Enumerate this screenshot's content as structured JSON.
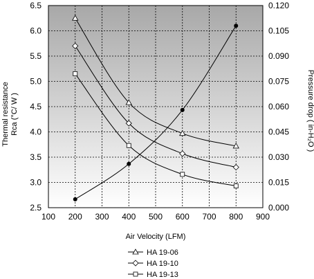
{
  "chart_data": {
    "type": "line",
    "xlabel": "Air Velocity (LFM)",
    "ylabel_left_line1": "Thermal resistance",
    "ylabel_left_line2": "Rca (°C/ W )",
    "ylabel_right": "Pressure drop ( in-H₂O )",
    "xlim": [
      100,
      900
    ],
    "ylim_left": [
      2.5,
      6.5
    ],
    "ylim_right": [
      0.0,
      0.12
    ],
    "x_ticks": [
      "100",
      "200",
      "300",
      "400",
      "500",
      "600",
      "700",
      "800",
      "900"
    ],
    "y_left_ticks": [
      "2.5",
      "3.0",
      "3.5",
      "4.0",
      "4.5",
      "5.0",
      "5.5",
      "6.0",
      "6.5"
    ],
    "y_right_ticks": [
      "0.000",
      "0.015",
      "0.030",
      "0.045",
      "0.060",
      "0.075",
      "0.090",
      "0.105",
      "0.120"
    ],
    "grid": true,
    "legend_position": "below",
    "series": [
      {
        "name": "HA 19-06",
        "marker": "triangle",
        "axis": "left",
        "x": [
          200,
          400,
          600,
          800
        ],
        "y": [
          6.25,
          4.58,
          3.97,
          3.72
        ]
      },
      {
        "name": "HA 19-10",
        "marker": "diamond",
        "axis": "left",
        "x": [
          200,
          400,
          600,
          800
        ],
        "y": [
          5.7,
          4.17,
          3.57,
          3.3
        ]
      },
      {
        "name": "HA 19-13",
        "marker": "square",
        "axis": "left",
        "x": [
          200,
          400,
          600,
          800
        ],
        "y": [
          5.15,
          3.73,
          3.16,
          2.93
        ]
      },
      {
        "name": "",
        "marker": "filled-circle",
        "axis": "right",
        "x": [
          200,
          400,
          600,
          800
        ],
        "y": [
          0.005,
          0.026,
          0.058,
          0.108
        ]
      }
    ]
  }
}
